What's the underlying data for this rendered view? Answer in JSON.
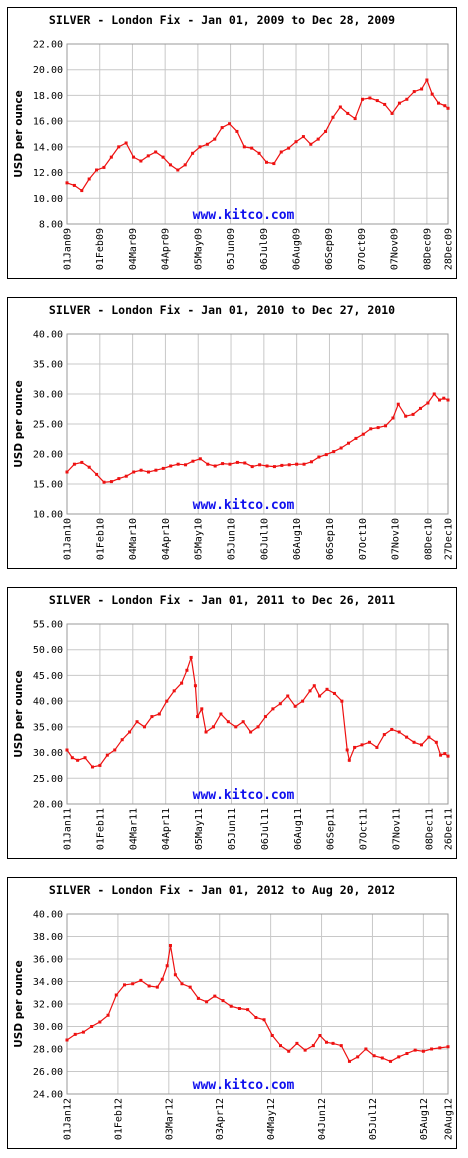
{
  "chart_data": [
    {
      "type": "line",
      "title": "SILVER - London Fix - Jan 01, 2009 to Dec 28, 2009",
      "ylabel": "USD per ounce",
      "annotation": "www.kitco.com",
      "color": "#ee1111",
      "grid": true,
      "xlim": [
        0,
        361
      ],
      "xticks": [
        {
          "value": 0,
          "label": "01Jan09"
        },
        {
          "value": 31,
          "label": "01Feb09"
        },
        {
          "value": 62,
          "label": "04Mar09"
        },
        {
          "value": 93,
          "label": "04Apr09"
        },
        {
          "value": 124,
          "label": "05May09"
        },
        {
          "value": 155,
          "label": "05Jun09"
        },
        {
          "value": 186,
          "label": "06Jul09"
        },
        {
          "value": 217,
          "label": "06Aug09"
        },
        {
          "value": 248,
          "label": "06Sep09"
        },
        {
          "value": 279,
          "label": "07Oct09"
        },
        {
          "value": 310,
          "label": "07Nov09"
        },
        {
          "value": 341,
          "label": "08Dec09"
        },
        {
          "value": 361,
          "label": "28Dec09"
        }
      ],
      "ylim": [
        8,
        22
      ],
      "yticks": [
        {
          "value": 8,
          "label": "8.00"
        },
        {
          "value": 10,
          "label": "10.00"
        },
        {
          "value": 12,
          "label": "12.00"
        },
        {
          "value": 14,
          "label": "14.00"
        },
        {
          "value": 16,
          "label": "16.00"
        },
        {
          "value": 18,
          "label": "18.00"
        },
        {
          "value": 20,
          "label": "20.00"
        },
        {
          "value": 22,
          "label": "22.00"
        }
      ],
      "x": [
        0,
        7,
        14,
        21,
        28,
        35,
        42,
        49,
        56,
        63,
        70,
        77,
        84,
        91,
        98,
        105,
        112,
        119,
        126,
        133,
        140,
        147,
        154,
        161,
        168,
        175,
        182,
        189,
        196,
        203,
        210,
        217,
        224,
        231,
        238,
        245,
        252,
        259,
        266,
        273,
        280,
        287,
        294,
        301,
        308,
        315,
        322,
        329,
        336,
        341,
        346,
        352,
        358,
        361
      ],
      "values": [
        11.2,
        11.0,
        10.6,
        11.5,
        12.2,
        12.4,
        13.2,
        14.0,
        14.3,
        13.2,
        12.9,
        13.3,
        13.6,
        13.2,
        12.6,
        12.2,
        12.6,
        13.5,
        14.0,
        14.2,
        14.6,
        15.5,
        15.8,
        15.2,
        14.0,
        13.9,
        13.5,
        12.8,
        12.7,
        13.6,
        13.9,
        14.4,
        14.8,
        14.2,
        14.6,
        15.2,
        16.3,
        17.1,
        16.6,
        16.2,
        17.7,
        17.8,
        17.6,
        17.3,
        16.6,
        17.4,
        17.7,
        18.3,
        18.5,
        19.2,
        18.1,
        17.4,
        17.2,
        17.0
      ]
    },
    {
      "type": "line",
      "title": "SILVER - London Fix - Jan 01, 2010 to Dec 27, 2010",
      "ylabel": "USD per ounce",
      "annotation": "www.kitco.com",
      "color": "#ee1111",
      "grid": true,
      "xlim": [
        0,
        360
      ],
      "xticks": [
        {
          "value": 0,
          "label": "01Jan10"
        },
        {
          "value": 31,
          "label": "01Feb10"
        },
        {
          "value": 62,
          "label": "04Mar10"
        },
        {
          "value": 93,
          "label": "04Apr10"
        },
        {
          "value": 124,
          "label": "05May10"
        },
        {
          "value": 155,
          "label": "05Jun10"
        },
        {
          "value": 186,
          "label": "06Jul10"
        },
        {
          "value": 217,
          "label": "06Aug10"
        },
        {
          "value": 248,
          "label": "06Sep10"
        },
        {
          "value": 279,
          "label": "07Oct10"
        },
        {
          "value": 310,
          "label": "07Nov10"
        },
        {
          "value": 341,
          "label": "08Dec10"
        },
        {
          "value": 360,
          "label": "27Dec10"
        }
      ],
      "ylim": [
        10,
        40
      ],
      "yticks": [
        {
          "value": 10,
          "label": "10.00"
        },
        {
          "value": 15,
          "label": "15.00"
        },
        {
          "value": 20,
          "label": "20.00"
        },
        {
          "value": 25,
          "label": "25.00"
        },
        {
          "value": 30,
          "label": "30.00"
        },
        {
          "value": 35,
          "label": "35.00"
        },
        {
          "value": 40,
          "label": "40.00"
        }
      ],
      "x": [
        0,
        7,
        14,
        21,
        28,
        35,
        42,
        49,
        56,
        63,
        70,
        77,
        84,
        91,
        98,
        105,
        112,
        119,
        126,
        133,
        140,
        147,
        154,
        161,
        168,
        175,
        182,
        189,
        196,
        203,
        210,
        217,
        224,
        231,
        238,
        245,
        252,
        259,
        266,
        273,
        280,
        287,
        294,
        301,
        308,
        313,
        320,
        327,
        334,
        341,
        347,
        352,
        356,
        360
      ],
      "values": [
        17.0,
        18.3,
        18.6,
        17.8,
        16.6,
        15.3,
        15.4,
        15.9,
        16.3,
        17.0,
        17.3,
        17.0,
        17.3,
        17.6,
        18.0,
        18.3,
        18.2,
        18.8,
        19.2,
        18.3,
        18.0,
        18.4,
        18.3,
        18.6,
        18.5,
        17.9,
        18.2,
        18.0,
        17.9,
        18.1,
        18.2,
        18.3,
        18.3,
        18.7,
        19.5,
        19.9,
        20.4,
        21.0,
        21.8,
        22.6,
        23.3,
        24.2,
        24.4,
        24.7,
        26.0,
        28.3,
        26.3,
        26.6,
        27.6,
        28.5,
        30.0,
        29.0,
        29.3,
        29.0
      ]
    },
    {
      "type": "line",
      "title": "SILVER - London Fix - Jan 01, 2011 to Dec 26, 2011",
      "ylabel": "USD per ounce",
      "annotation": "www.kitco.com",
      "color": "#ee1111",
      "grid": true,
      "xlim": [
        0,
        359
      ],
      "xticks": [
        {
          "value": 0,
          "label": "01Jan11"
        },
        {
          "value": 31,
          "label": "01Feb11"
        },
        {
          "value": 62,
          "label": "04Mar11"
        },
        {
          "value": 93,
          "label": "04Apr11"
        },
        {
          "value": 124,
          "label": "05May11"
        },
        {
          "value": 155,
          "label": "05Jun11"
        },
        {
          "value": 186,
          "label": "06Jul11"
        },
        {
          "value": 217,
          "label": "06Aug11"
        },
        {
          "value": 248,
          "label": "06Sep11"
        },
        {
          "value": 279,
          "label": "07Oct11"
        },
        {
          "value": 310,
          "label": "07Nov11"
        },
        {
          "value": 341,
          "label": "08Dec11"
        },
        {
          "value": 359,
          "label": "26Dec11"
        }
      ],
      "ylim": [
        20,
        55
      ],
      "yticks": [
        {
          "value": 20,
          "label": "20.00"
        },
        {
          "value": 25,
          "label": "25.00"
        },
        {
          "value": 30,
          "label": "30.00"
        },
        {
          "value": 35,
          "label": "35.00"
        },
        {
          "value": 40,
          "label": "40.00"
        },
        {
          "value": 45,
          "label": "45.00"
        },
        {
          "value": 50,
          "label": "50.00"
        },
        {
          "value": 55,
          "label": "55.00"
        }
      ],
      "x": [
        0,
        5,
        10,
        17,
        24,
        31,
        38,
        45,
        52,
        59,
        66,
        73,
        80,
        87,
        94,
        101,
        108,
        113,
        117,
        121,
        123,
        127,
        131,
        138,
        145,
        152,
        159,
        166,
        173,
        180,
        187,
        194,
        201,
        208,
        215,
        222,
        229,
        233,
        238,
        245,
        252,
        259,
        264,
        266,
        271,
        278,
        285,
        292,
        299,
        306,
        313,
        320,
        327,
        334,
        341,
        348,
        352,
        356,
        359
      ],
      "values": [
        30.5,
        29,
        28.5,
        29,
        27.2,
        27.5,
        29.5,
        30.5,
        32.5,
        34,
        36,
        35,
        37,
        37.5,
        40,
        42,
        43.5,
        46,
        48.5,
        43,
        37,
        38.5,
        34,
        35,
        37.5,
        36,
        35,
        36,
        34,
        35,
        37,
        38.5,
        39.5,
        41,
        39,
        40,
        42,
        43,
        41,
        42.3,
        41.5,
        40,
        30.5,
        28.5,
        31,
        31.5,
        32,
        31,
        33.5,
        34.5,
        34,
        33,
        32,
        31.5,
        33,
        32,
        29.5,
        29.8,
        29.3
      ]
    },
    {
      "type": "line",
      "title": "SILVER - London Fix - Jan 01, 2012 to Aug 20, 2012",
      "ylabel": "USD per ounce",
      "annotation": "www.kitco.com",
      "color": "#ee1111",
      "grid": true,
      "xlim": [
        0,
        232
      ],
      "xticks": [
        {
          "value": 0,
          "label": "01Jan12"
        },
        {
          "value": 31,
          "label": "01Feb12"
        },
        {
          "value": 62,
          "label": "03Mar12"
        },
        {
          "value": 93,
          "label": "03Apr12"
        },
        {
          "value": 124,
          "label": "04May12"
        },
        {
          "value": 155,
          "label": "04Jun12"
        },
        {
          "value": 186,
          "label": "05Jul12"
        },
        {
          "value": 217,
          "label": "05Aug12"
        },
        {
          "value": 232,
          "label": "20Aug12"
        }
      ],
      "ylim": [
        24,
        40
      ],
      "yticks": [
        {
          "value": 24,
          "label": "24.00"
        },
        {
          "value": 26,
          "label": "26.00"
        },
        {
          "value": 28,
          "label": "28.00"
        },
        {
          "value": 30,
          "label": "30.00"
        },
        {
          "value": 32,
          "label": "32.00"
        },
        {
          "value": 34,
          "label": "34.00"
        },
        {
          "value": 36,
          "label": "36.00"
        },
        {
          "value": 38,
          "label": "38.00"
        },
        {
          "value": 40,
          "label": "40.00"
        }
      ],
      "x": [
        0,
        5,
        10,
        15,
        20,
        25,
        30,
        35,
        40,
        45,
        50,
        55,
        58,
        61,
        63,
        66,
        70,
        75,
        80,
        85,
        90,
        95,
        100,
        105,
        110,
        115,
        120,
        125,
        130,
        135,
        140,
        145,
        150,
        154,
        158,
        162,
        167,
        172,
        177,
        182,
        187,
        192,
        197,
        202,
        207,
        212,
        217,
        222,
        227,
        232
      ],
      "values": [
        28.8,
        29.3,
        29.5,
        30,
        30.4,
        31,
        32.8,
        33.7,
        33.8,
        34.1,
        33.6,
        33.5,
        34.2,
        35.4,
        37.2,
        34.6,
        33.8,
        33.5,
        32.5,
        32.2,
        32.7,
        32.3,
        31.8,
        31.6,
        31.5,
        30.8,
        30.6,
        29.2,
        28.3,
        27.8,
        28.5,
        27.9,
        28.3,
        29.2,
        28.6,
        28.5,
        28.3,
        26.9,
        27.3,
        28.0,
        27.4,
        27.2,
        26.9,
        27.3,
        27.6,
        27.9,
        27.8,
        28.0,
        28.1,
        28.2
      ]
    }
  ]
}
